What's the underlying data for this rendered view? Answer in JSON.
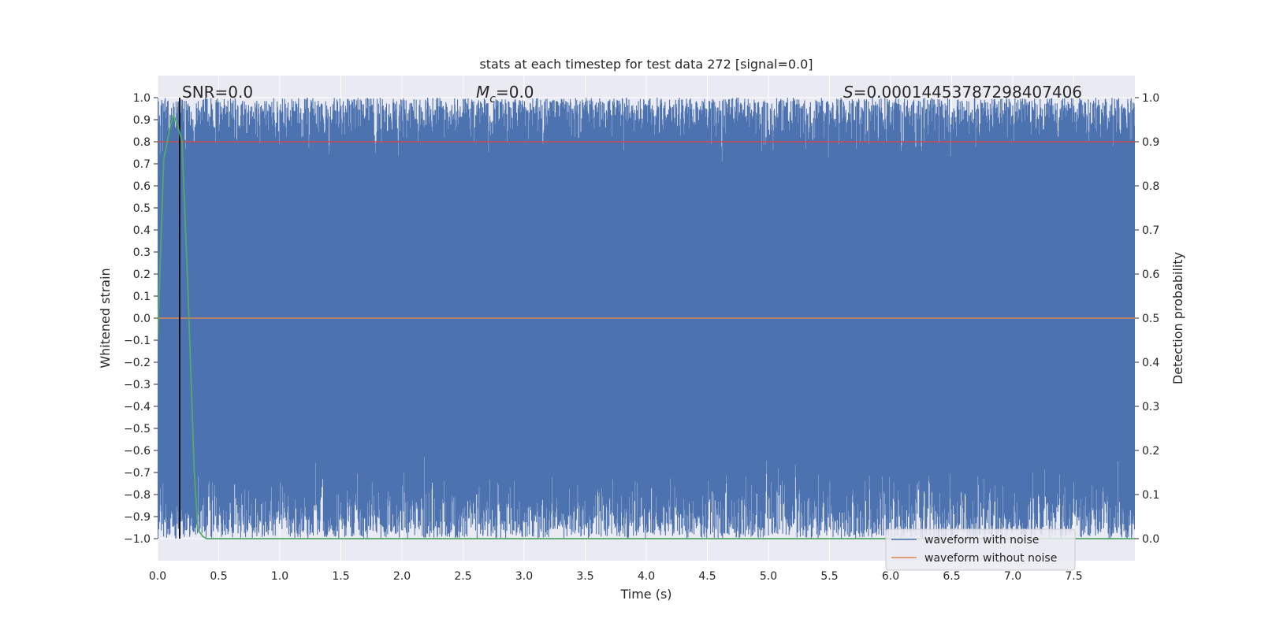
{
  "chart_data": {
    "type": "line",
    "title": "stats at each timestep for test data 272 [signal=0.0]",
    "xlabel": "Time (s)",
    "ylabel_left": "Whitened strain",
    "ylabel_right": "Detection probability",
    "xlim": [
      0.0,
      8.0
    ],
    "ylim_left": [
      -1.1,
      1.1
    ],
    "ylim_right": [
      -0.05,
      1.05
    ],
    "x_ticks": [
      "0.0",
      "0.5",
      "1.0",
      "1.5",
      "2.0",
      "2.5",
      "3.0",
      "3.5",
      "4.0",
      "4.5",
      "5.0",
      "5.5",
      "6.0",
      "6.5",
      "7.0",
      "7.5"
    ],
    "y_ticks_left": [
      "1.0",
      "0.9",
      "0.8",
      "0.7",
      "0.6",
      "0.5",
      "0.4",
      "0.3",
      "0.2",
      "0.1",
      "0.0",
      "−0.1",
      "−0.2",
      "−0.3",
      "−0.4",
      "−0.5",
      "−0.6",
      "−0.7",
      "−0.8",
      "−0.9",
      "−1.0"
    ],
    "y_ticks_right": [
      "1.0",
      "0.9",
      "0.8",
      "0.7",
      "0.6",
      "0.5",
      "0.4",
      "0.3",
      "0.2",
      "0.1",
      "0.0"
    ],
    "grid": true,
    "legend_position": "lower-right",
    "annotations": {
      "snr": "SNR=0.0",
      "mc": "=0.0",
      "mc_symbol": "M",
      "mc_subscript": "c",
      "s": "=0.00014453787298407406",
      "s_symbol": "S"
    },
    "series": [
      {
        "name": "waveform with noise",
        "axis": "left",
        "color": "#4c72b0",
        "description_values": "dense noise filling roughly [-1.0, 1.0]"
      },
      {
        "name": "waveform without noise",
        "axis": "left",
        "color": "#dd8452",
        "x": [
          0.0,
          8.0
        ],
        "y": [
          0.0,
          0.0
        ]
      },
      {
        "axis": "right",
        "color": "#55a868",
        "x": [
          0.0,
          0.05,
          0.1,
          0.13,
          0.16,
          0.2,
          0.25,
          0.3,
          0.33,
          0.37,
          0.4,
          8.0
        ],
        "y": [
          0.45,
          0.86,
          0.93,
          0.96,
          0.94,
          0.9,
          0.55,
          0.15,
          0.02,
          0.005,
          0.0,
          0.0
        ]
      }
    ],
    "threshold_line": {
      "axis": "right",
      "y": 0.9,
      "color": "#c44e52"
    },
    "marker_line": {
      "axis": "left",
      "x": 0.18,
      "color": "#000000"
    }
  }
}
